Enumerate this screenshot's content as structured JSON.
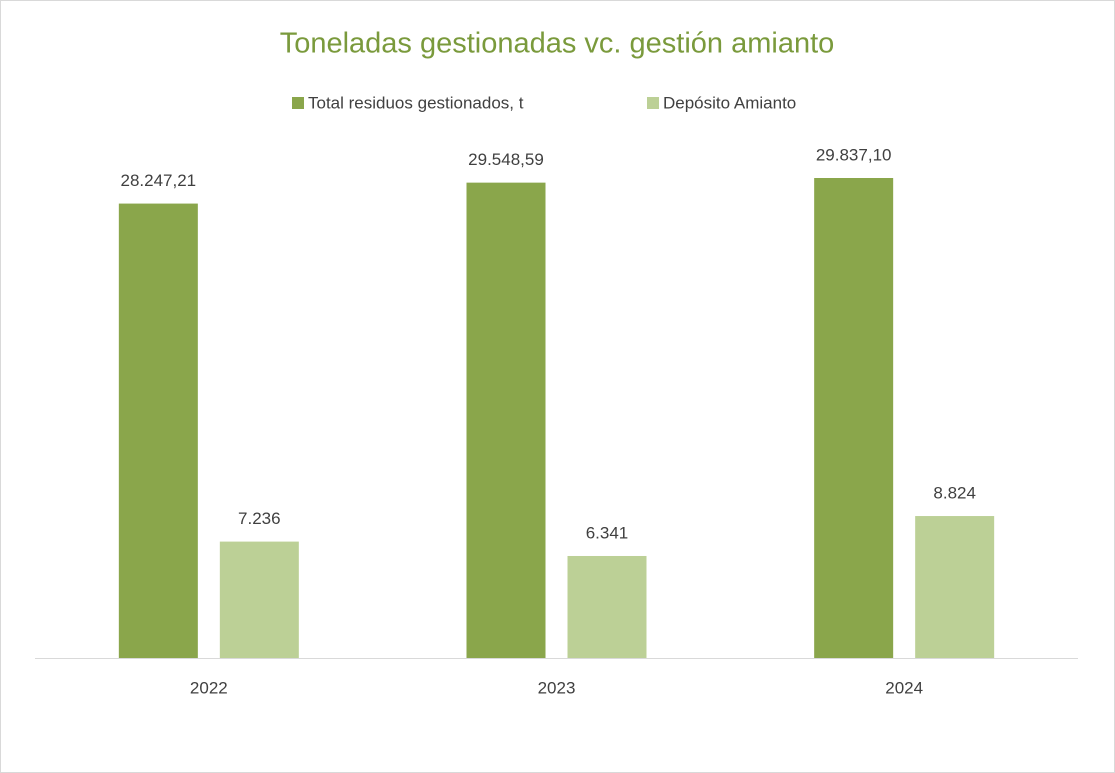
{
  "chart_data": {
    "type": "bar",
    "title": "Toneladas gestionadas vc. gestión amianto",
    "categories": [
      "2022",
      "2023",
      "2024"
    ],
    "series": [
      {
        "name": "Total residuos gestionados, t",
        "color": "#8aa64b",
        "values": [
          28247.21,
          29548.59,
          29837.1
        ],
        "value_labels": [
          "28.247,21",
          "29.548,59",
          "29.837,10"
        ]
      },
      {
        "name": "Depósito Amianto",
        "color": "#bcd096",
        "values": [
          7236,
          6341,
          8824
        ],
        "value_labels": [
          "7.236",
          "6.341",
          "8.824"
        ]
      }
    ],
    "legend": "top",
    "grid": false
  }
}
